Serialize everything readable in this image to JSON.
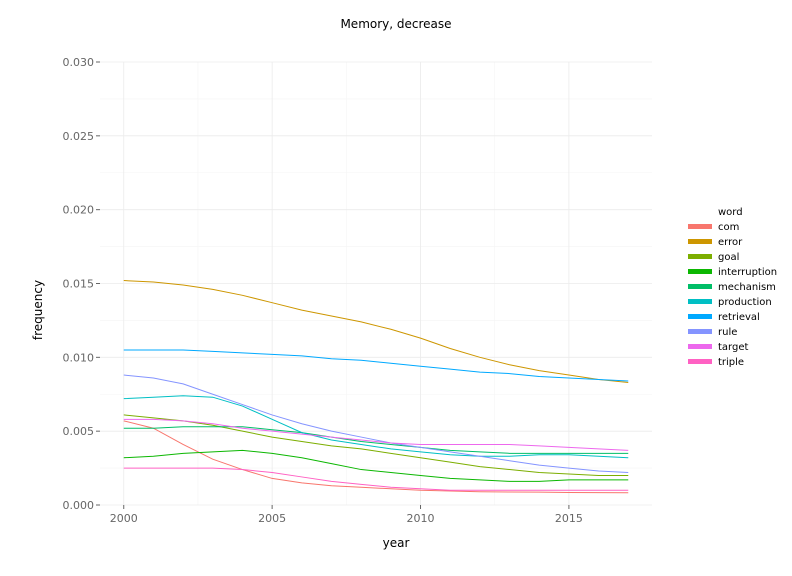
{
  "chart_data": {
    "type": "line",
    "title": "Memory, decrease",
    "xlabel": "year",
    "ylabel": "frequency",
    "xlim": [
      1999.2,
      2017.8
    ],
    "ylim": [
      0,
      0.03
    ],
    "x_ticks": [
      2000,
      2005,
      2010,
      2015
    ],
    "x_tick_labels": [
      "2000",
      "2005",
      "2010",
      "2015"
    ],
    "y_ticks": [
      0.0,
      0.005,
      0.01,
      0.015,
      0.02,
      0.025,
      0.03
    ],
    "y_tick_labels": [
      "0.000",
      "0.005",
      "0.010",
      "0.015",
      "0.020",
      "0.025",
      "0.030"
    ],
    "grid": true,
    "legend": {
      "title": "word",
      "position": "right"
    },
    "x": [
      2000,
      2001,
      2002,
      2003,
      2004,
      2005,
      2006,
      2007,
      2008,
      2009,
      2010,
      2011,
      2012,
      2013,
      2014,
      2015,
      2016,
      2017
    ],
    "series": [
      {
        "name": "com",
        "color": "#F8766D",
        "values": [
          0.0057,
          0.0052,
          0.0041,
          0.0031,
          0.0024,
          0.0018,
          0.0015,
          0.0013,
          0.0012,
          0.0011,
          0.001,
          0.00095,
          0.0009,
          0.00088,
          0.00087,
          0.00085,
          0.00084,
          0.00083
        ]
      },
      {
        "name": "error",
        "color": "#CD9600",
        "values": [
          0.0152,
          0.0151,
          0.0149,
          0.0146,
          0.0142,
          0.0137,
          0.0132,
          0.0128,
          0.0124,
          0.0119,
          0.0113,
          0.0106,
          0.01,
          0.0095,
          0.0091,
          0.0088,
          0.0085,
          0.0083
        ]
      },
      {
        "name": "goal",
        "color": "#7CAE00",
        "values": [
          0.0061,
          0.0059,
          0.0057,
          0.0054,
          0.005,
          0.0046,
          0.0043,
          0.004,
          0.0038,
          0.0035,
          0.0032,
          0.0029,
          0.0026,
          0.0024,
          0.0022,
          0.0021,
          0.002,
          0.002
        ]
      },
      {
        "name": "interruption",
        "color": "#0CB702",
        "values": [
          0.0032,
          0.0033,
          0.0035,
          0.0036,
          0.0037,
          0.0035,
          0.0032,
          0.0028,
          0.0024,
          0.0022,
          0.002,
          0.0018,
          0.0017,
          0.0016,
          0.0016,
          0.0017,
          0.0017,
          0.0017
        ]
      },
      {
        "name": "mechanism",
        "color": "#00BE67",
        "values": [
          0.0052,
          0.0052,
          0.0053,
          0.0053,
          0.0053,
          0.0051,
          0.0049,
          0.0046,
          0.0043,
          0.0041,
          0.0039,
          0.0037,
          0.0036,
          0.0035,
          0.0035,
          0.0035,
          0.0035,
          0.0035
        ]
      },
      {
        "name": "production",
        "color": "#00BFC4",
        "values": [
          0.0072,
          0.0073,
          0.0074,
          0.0073,
          0.0067,
          0.0058,
          0.0049,
          0.0044,
          0.0041,
          0.0038,
          0.0036,
          0.0034,
          0.0033,
          0.0033,
          0.0034,
          0.0034,
          0.0033,
          0.0032
        ]
      },
      {
        "name": "retrieval",
        "color": "#00A9FF",
        "values": [
          0.0105,
          0.0105,
          0.0105,
          0.0104,
          0.0103,
          0.0102,
          0.0101,
          0.0099,
          0.0098,
          0.0096,
          0.0094,
          0.0092,
          0.009,
          0.0089,
          0.0087,
          0.0086,
          0.0085,
          0.0084
        ]
      },
      {
        "name": "rule",
        "color": "#8494FF",
        "values": [
          0.0088,
          0.0086,
          0.0082,
          0.0075,
          0.0068,
          0.0061,
          0.0055,
          0.005,
          0.0046,
          0.0042,
          0.0039,
          0.0036,
          0.0033,
          0.003,
          0.0027,
          0.0025,
          0.0023,
          0.0022
        ]
      },
      {
        "name": "target",
        "color": "#ED68ED",
        "values": [
          0.0058,
          0.0058,
          0.0057,
          0.0055,
          0.0052,
          0.005,
          0.0048,
          0.0046,
          0.0044,
          0.0042,
          0.0041,
          0.0041,
          0.0041,
          0.0041,
          0.004,
          0.0039,
          0.0038,
          0.0037
        ]
      },
      {
        "name": "triple",
        "color": "#FF61C3",
        "values": [
          0.0025,
          0.0025,
          0.0025,
          0.0025,
          0.0024,
          0.0022,
          0.0019,
          0.0016,
          0.0014,
          0.0012,
          0.0011,
          0.001,
          0.001,
          0.001,
          0.001,
          0.001,
          0.001,
          0.001
        ]
      }
    ]
  }
}
